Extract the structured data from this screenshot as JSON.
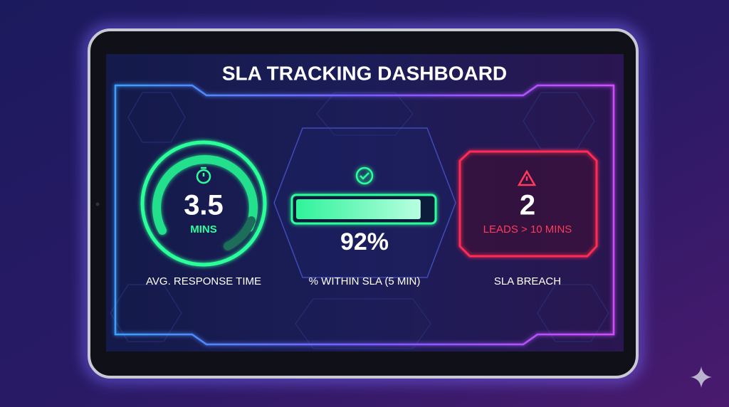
{
  "header": {
    "title": "SLA TRACKING DASHBOARD"
  },
  "cards": [
    {
      "value": "3.5",
      "unit": "MINS",
      "label": "AVG. RESPONSE TIME"
    },
    {
      "progress": {
        "value": 92,
        "label": "92%"
      },
      "label": "% WITHIN SLA (5 MIN)"
    },
    {
      "value": "2",
      "unit": "LEADS > 10 MINS",
      "label": "SLA BREACH"
    }
  ]
}
